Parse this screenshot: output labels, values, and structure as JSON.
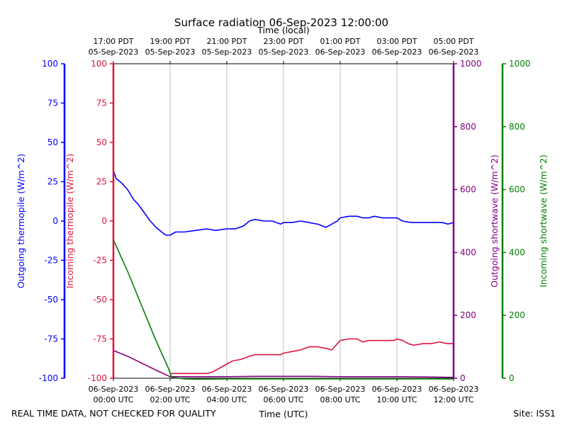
{
  "chart_data": {
    "type": "line",
    "title": "Surface radiation 06-Sep-2023 12:00:00",
    "top_axis_label": "Time (local)",
    "xlabel": "Time (UTC)",
    "footer_left": "REAL TIME DATA, NOT CHECKED FOR QUALITY",
    "footer_right": "Site: ISS1",
    "x_range_hours": [
      0,
      12
    ],
    "bottom_ticks": [
      {
        "h": 0,
        "l1": "06-Sep-2023",
        "l2": "00:00 UTC"
      },
      {
        "h": 2,
        "l1": "06-Sep-2023",
        "l2": "02:00 UTC"
      },
      {
        "h": 4,
        "l1": "06-Sep-2023",
        "l2": "04:00 UTC"
      },
      {
        "h": 6,
        "l1": "06-Sep-2023",
        "l2": "06:00 UTC"
      },
      {
        "h": 8,
        "l1": "06-Sep-2023",
        "l2": "08:00 UTC"
      },
      {
        "h": 10,
        "l1": "06-Sep-2023",
        "l2": "10:00 UTC"
      },
      {
        "h": 12,
        "l1": "06-Sep-2023",
        "l2": "12:00 UTC"
      }
    ],
    "top_ticks": [
      {
        "h": 0,
        "l1": "17:00 PDT",
        "l2": "05-Sep-2023"
      },
      {
        "h": 2,
        "l1": "19:00 PDT",
        "l2": "05-Sep-2023"
      },
      {
        "h": 4,
        "l1": "21:00 PDT",
        "l2": "05-Sep-2023"
      },
      {
        "h": 6,
        "l1": "23:00 PDT",
        "l2": "05-Sep-2023"
      },
      {
        "h": 8,
        "l1": "01:00 PDT",
        "l2": "06-Sep-2023"
      },
      {
        "h": 10,
        "l1": "03:00 PDT",
        "l2": "06-Sep-2023"
      },
      {
        "h": 12,
        "l1": "05:00 PDT",
        "l2": "06-Sep-2023"
      }
    ],
    "axes": {
      "outgoing_thermopile": {
        "label": "Outgoing thermopile (W/m^2)",
        "color": "#0000ff",
        "ylim": [
          -100,
          100
        ],
        "ticks": [
          -100,
          -75,
          -50,
          -25,
          0,
          25,
          50,
          75,
          100
        ]
      },
      "incoming_thermopile": {
        "label": "Incoming thermopile (W/m^2)",
        "color": "#dc143c",
        "ylim": [
          -100,
          100
        ],
        "ticks": [
          -100,
          -75,
          -50,
          -25,
          0,
          25,
          50,
          75,
          100
        ]
      },
      "outgoing_shortwave": {
        "label": "Outgoing shortwave (W/m^2)",
        "color": "#800080",
        "ylim": [
          0,
          1000
        ],
        "ticks": [
          0,
          200,
          400,
          600,
          800,
          1000
        ]
      },
      "incoming_shortwave": {
        "label": "Incoming shortwave (W/m^2)",
        "color": "#008000",
        "ylim": [
          0,
          1000
        ],
        "ticks": [
          0,
          200,
          400,
          600,
          800,
          1000
        ]
      }
    },
    "series": [
      {
        "name": "Outgoing thermopile",
        "axis": "outgoing_thermopile",
        "color": "#0000ff",
        "x": [
          0,
          0.1,
          0.3,
          0.5,
          0.7,
          0.9,
          1.1,
          1.3,
          1.5,
          1.7,
          1.85,
          2.0,
          2.2,
          2.5,
          2.9,
          3.3,
          3.6,
          4.0,
          4.3,
          4.6,
          4.8,
          5.0,
          5.3,
          5.6,
          5.9,
          6.0,
          6.3,
          6.6,
          6.9,
          7.2,
          7.5,
          7.7,
          7.9,
          8.0,
          8.3,
          8.6,
          8.8,
          9.0,
          9.2,
          9.5,
          9.8,
          10.0,
          10.2,
          10.5,
          10.8,
          11.0,
          11.3,
          11.6,
          11.8,
          12.0
        ],
        "y": [
          32,
          27,
          24,
          20,
          14,
          10,
          5,
          0,
          -4,
          -7,
          -9,
          -9,
          -7,
          -7,
          -6,
          -5,
          -6,
          -5,
          -5,
          -3,
          0,
          1,
          0,
          0,
          -2,
          -1,
          -1,
          0,
          -1,
          -2,
          -4,
          -2,
          0,
          2,
          3,
          3,
          2,
          2,
          3,
          2,
          2,
          2,
          0,
          -1,
          -1,
          -1,
          -1,
          -1,
          -2,
          -1
        ]
      },
      {
        "name": "Incoming thermopile",
        "axis": "incoming_thermopile",
        "color": "#dc143c",
        "x": [
          2.0,
          2.5,
          3.0,
          3.3,
          3.5,
          3.8,
          4.0,
          4.2,
          4.5,
          4.8,
          5.0,
          5.3,
          5.6,
          5.9,
          6.0,
          6.3,
          6.6,
          6.9,
          7.2,
          7.5,
          7.7,
          7.8,
          8.0,
          8.3,
          8.6,
          8.8,
          9.0,
          9.3,
          9.6,
          9.9,
          10.0,
          10.2,
          10.4,
          10.6,
          10.9,
          11.2,
          11.5,
          11.8,
          12.0
        ],
        "y": [
          -97,
          -97,
          -97,
          -97,
          -96,
          -93,
          -91,
          -89,
          -88,
          -86,
          -85,
          -85,
          -85,
          -85,
          -84,
          -83,
          -82,
          -80,
          -80,
          -81,
          -82,
          -80,
          -76,
          -75,
          -75,
          -77,
          -76,
          -76,
          -76,
          -76,
          -75,
          -76,
          -78,
          -79,
          -78,
          -78,
          -77,
          -78,
          -78
        ]
      },
      {
        "name": "Outgoing shortwave",
        "axis": "outgoing_shortwave",
        "color": "#800080",
        "x": [
          0,
          0.5,
          1.0,
          1.5,
          2.0,
          3.0,
          4.0,
          5.0,
          6.0,
          7.0,
          8.0,
          9.0,
          10.0,
          11.0,
          12.0
        ],
        "y": [
          88,
          70,
          48,
          26,
          5,
          5,
          5,
          6,
          6,
          6,
          5,
          5,
          5,
          4,
          3
        ]
      },
      {
        "name": "Incoming shortwave",
        "axis": "incoming_shortwave",
        "color": "#008000",
        "x": [
          0,
          0.5,
          1.0,
          1.5,
          1.95,
          2.05,
          2.5,
          3.0,
          4.0,
          6.0,
          8.0,
          10.0,
          12.0
        ],
        "y": [
          440,
          340,
          230,
          120,
          30,
          3,
          -2,
          -3,
          -2,
          -2,
          -2,
          -2,
          -2
        ]
      }
    ]
  }
}
